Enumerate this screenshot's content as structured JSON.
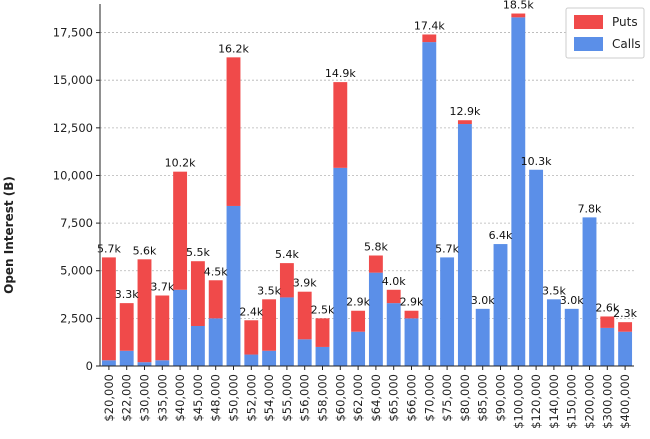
{
  "chart_data": {
    "type": "bar",
    "stacked": true,
    "title": "",
    "xlabel": "",
    "ylabel": "Open Interest (B)",
    "ylim": [
      0,
      19000
    ],
    "yticks": [
      0,
      2500,
      5000,
      7500,
      10000,
      12500,
      15000,
      17500
    ],
    "ytick_labels": [
      "0",
      "2,500",
      "5,000",
      "7,500",
      "10,000",
      "12,500",
      "15,000",
      "17,500"
    ],
    "grid": true,
    "legend_position": "top-right",
    "categories": [
      "$20,000",
      "$22,000",
      "$30,000",
      "$35,000",
      "$40,000",
      "$45,000",
      "$48,000",
      "$50,000",
      "$52,000",
      "$54,000",
      "$55,000",
      "$56,000",
      "$58,000",
      "$60,000",
      "$62,000",
      "$64,000",
      "$65,000",
      "$66,000",
      "$70,000",
      "$75,000",
      "$80,000",
      "$85,000",
      "$90,000",
      "$100,000",
      "$120,000",
      "$140,000",
      "$150,000",
      "$200,000",
      "$300,000",
      "$400,000"
    ],
    "series": [
      {
        "name": "Calls",
        "color": "#5b8fe8",
        "values": [
          300,
          800,
          200,
          300,
          4000,
          2100,
          2500,
          8400,
          600,
          800,
          3600,
          1400,
          1000,
          10400,
          1800,
          4900,
          3300,
          2500,
          17000,
          5700,
          12700,
          3000,
          6400,
          18300,
          10300,
          3500,
          3000,
          7800,
          2000,
          1800
        ]
      },
      {
        "name": "Puts",
        "color": "#f04a4a",
        "values": [
          5400,
          2500,
          5400,
          3400,
          6200,
          3400,
          2000,
          7800,
          1800,
          2700,
          1800,
          2500,
          1500,
          4500,
          1100,
          900,
          700,
          400,
          400,
          0,
          200,
          0,
          0,
          200,
          0,
          0,
          0,
          0,
          600,
          500
        ]
      }
    ],
    "totals_labels": [
      "5.7k",
      "3.3k",
      "5.6k",
      "3.7k",
      "10.2k",
      "5.5k",
      "4.5k",
      "16.2k",
      "2.4k",
      "3.5k",
      "5.4k",
      "3.9k",
      "2.5k",
      "14.9k",
      "2.9k",
      "5.8k",
      "4.0k",
      "2.9k",
      "17.4k",
      "5.7k",
      "12.9k",
      "3.0k",
      "6.4k",
      "18.5k",
      "10.3k",
      "3.5k",
      "3.0k",
      "7.8k",
      "2.6k",
      "2.3k"
    ],
    "legend": [
      {
        "label": "Puts",
        "color": "#f04a4a"
      },
      {
        "label": "Calls",
        "color": "#5b8fe8"
      }
    ]
  }
}
